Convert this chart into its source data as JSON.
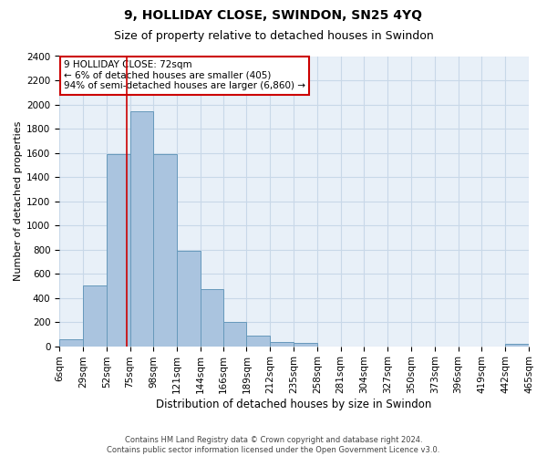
{
  "title": "9, HOLLIDAY CLOSE, SWINDON, SN25 4YQ",
  "subtitle": "Size of property relative to detached houses in Swindon",
  "xlabel": "Distribution of detached houses by size in Swindon",
  "ylabel": "Number of detached properties",
  "footer_line1": "Contains HM Land Registry data © Crown copyright and database right 2024.",
  "footer_line2": "Contains public sector information licensed under the Open Government Licence v3.0.",
  "annotation_line1": "9 HOLLIDAY CLOSE: 72sqm",
  "annotation_line2": "← 6% of detached houses are smaller (405)",
  "annotation_line3": "94% of semi-detached houses are larger (6,860) →",
  "bin_edges": [
    6,
    29,
    52,
    75,
    98,
    121,
    144,
    166,
    189,
    212,
    235,
    258,
    281,
    304,
    327,
    350,
    373,
    396,
    419,
    442,
    465
  ],
  "bar_heights": [
    60,
    500,
    1590,
    1940,
    1590,
    790,
    470,
    200,
    90,
    35,
    30,
    0,
    0,
    0,
    0,
    0,
    0,
    0,
    0,
    20
  ],
  "bar_color": "#aac4df",
  "bar_edge_color": "#6699bb",
  "vline_color": "#cc0000",
  "vline_x": 72,
  "annotation_box_edgecolor": "#cc0000",
  "annotation_bg_color": "#ffffff",
  "grid_color": "#c8d8e8",
  "bg_color": "#e8f0f8",
  "ylim": [
    0,
    2400
  ],
  "yticks": [
    0,
    200,
    400,
    600,
    800,
    1000,
    1200,
    1400,
    1600,
    1800,
    2000,
    2200,
    2400
  ],
  "title_fontsize": 10,
  "subtitle_fontsize": 9,
  "ylabel_fontsize": 8,
  "xlabel_fontsize": 8.5,
  "tick_fontsize": 7.5,
  "ann_fontsize": 7.5,
  "footer_fontsize": 6
}
